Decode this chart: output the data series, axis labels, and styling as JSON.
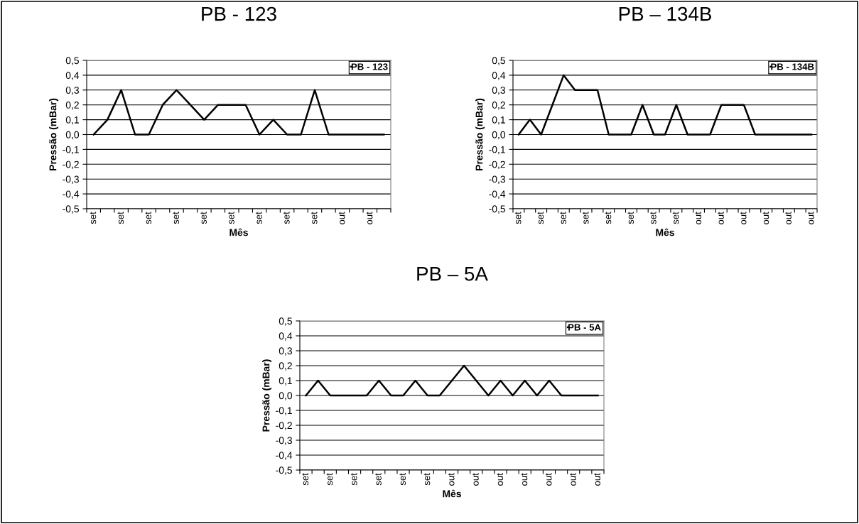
{
  "chart_data": [
    {
      "type": "line",
      "title": "PB - 123",
      "xlabel": "Mês",
      "ylabel": "Pressão (mBar)",
      "categories": [
        "set",
        null,
        "set",
        null,
        "set",
        null,
        "set",
        null,
        "set",
        null,
        "set",
        null,
        "set",
        null,
        "set",
        null,
        "set",
        null,
        "out",
        null,
        "out",
        null
      ],
      "series": [
        {
          "name": "PB - 123",
          "color": "#000000",
          "values": [
            0,
            0.1,
            0.3,
            0,
            0,
            0.2,
            0.3,
            0.2,
            0.1,
            0.2,
            0.2,
            0.2,
            0,
            0.1,
            0,
            0,
            0.3,
            0,
            0,
            0,
            0,
            0
          ]
        }
      ],
      "ylim": [
        -0.5,
        0.5
      ],
      "yticks": [
        {
          "value": -0.5,
          "label": "-0,5"
        },
        {
          "value": -0.4,
          "label": "-0,4"
        },
        {
          "value": -0.3,
          "label": "-0,3"
        },
        {
          "value": -0.2,
          "label": "-0,2"
        },
        {
          "value": -0.1,
          "label": "-0,1"
        },
        {
          "value": 0,
          "label": "0,0"
        },
        {
          "value": 0.1,
          "label": "0,1"
        },
        {
          "value": 0.2,
          "label": "0,2"
        },
        {
          "value": 0.3,
          "label": "0,3"
        },
        {
          "value": 0.4,
          "label": "0,4"
        },
        {
          "value": 0.5,
          "label": "0,5"
        }
      ],
      "grid": "y",
      "legend": "top right",
      "marker": "none",
      "line_style": "solid"
    },
    {
      "type": "line",
      "title": "PB – 134B",
      "xlabel": "Mês",
      "ylabel": "Pressão (mBar)",
      "categories": [
        "set",
        null,
        "set",
        null,
        "set",
        null,
        "set",
        null,
        "set",
        null,
        "set",
        null,
        "set",
        null,
        "set",
        null,
        "out",
        null,
        "out",
        null,
        "out",
        null,
        "out",
        null,
        "out",
        null,
        "out"
      ],
      "series": [
        {
          "name": "PB - 134B",
          "color": "#000000",
          "values": [
            0,
            0.1,
            0,
            0.2,
            0.4,
            0.3,
            0.3,
            0.3,
            0,
            0,
            0,
            0.2,
            0,
            0,
            0.2,
            0,
            0,
            0,
            0.2,
            0.2,
            0.2,
            0,
            0,
            0,
            0,
            0,
            0
          ]
        }
      ],
      "ylim": [
        -0.5,
        0.5
      ],
      "yticks": [
        {
          "value": -0.5,
          "label": "-0,5"
        },
        {
          "value": -0.4,
          "label": "-0,4"
        },
        {
          "value": -0.3,
          "label": "-0,3"
        },
        {
          "value": -0.2,
          "label": "-0,2"
        },
        {
          "value": -0.1,
          "label": "-0,1"
        },
        {
          "value": 0,
          "label": "0,0"
        },
        {
          "value": 0.1,
          "label": "0,1"
        },
        {
          "value": 0.2,
          "label": "0,2"
        },
        {
          "value": 0.3,
          "label": "0,3"
        },
        {
          "value": 0.4,
          "label": "0,4"
        },
        {
          "value": 0.5,
          "label": "0,5"
        }
      ],
      "grid": "y",
      "legend": "top right",
      "marker": "none",
      "line_style": "solid"
    },
    {
      "type": "line",
      "title": "PB – 5A",
      "xlabel": "Mês",
      "ylabel": "Pressão (mBar)",
      "categories": [
        "set",
        null,
        "set",
        null,
        "set",
        null,
        "set",
        null,
        "set",
        null,
        "set",
        null,
        "out",
        null,
        "out",
        null,
        "out",
        null,
        "out",
        null,
        "out",
        null,
        "out",
        null,
        "out"
      ],
      "series": [
        {
          "name": "PB - 5A",
          "color": "#000000",
          "values": [
            0,
            0.1,
            0,
            0,
            0,
            0,
            0.1,
            0,
            0,
            0.1,
            0,
            0,
            0.1,
            0.2,
            0.1,
            0,
            0.1,
            0,
            0.1,
            0,
            0.1,
            0,
            0,
            0,
            0
          ]
        }
      ],
      "ylim": [
        -0.5,
        0.5
      ],
      "yticks": [
        {
          "value": -0.5,
          "label": "-0,5"
        },
        {
          "value": -0.4,
          "label": "-0,4"
        },
        {
          "value": -0.3,
          "label": "-0,3"
        },
        {
          "value": -0.2,
          "label": "-0,2"
        },
        {
          "value": -0.1,
          "label": "-0,1"
        },
        {
          "value": 0,
          "label": "0,0"
        },
        {
          "value": 0.1,
          "label": "0,1"
        },
        {
          "value": 0.2,
          "label": "0,2"
        },
        {
          "value": 0.3,
          "label": "0,3"
        },
        {
          "value": 0.4,
          "label": "0,4"
        },
        {
          "value": 0.5,
          "label": "0,5"
        }
      ],
      "grid": "y",
      "legend": "top right",
      "marker": "none",
      "line_style": "solid"
    }
  ]
}
